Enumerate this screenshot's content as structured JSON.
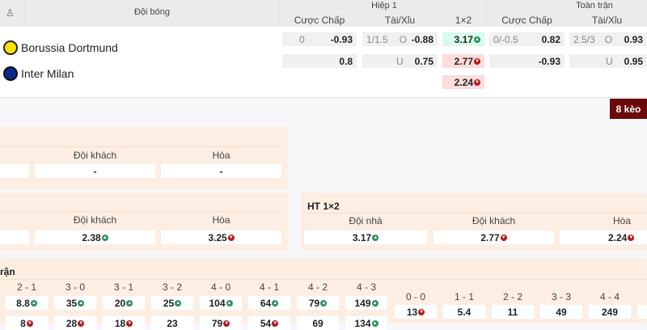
{
  "header": {
    "team_col": "Đội bóng",
    "half": "Hiệp 1",
    "full": "Toàn trận",
    "handicap": "Cược Chấp",
    "ou": "Tài/Xỉu",
    "x12": "1×2"
  },
  "teams": [
    {
      "name": "Borussia Dortmund",
      "color": "#fde100"
    },
    {
      "name": "Inter Milan",
      "color": "#0a2a8a"
    }
  ],
  "odds": {
    "h1_hdp": [
      {
        "line": "0",
        "val": "-0.93"
      },
      {
        "line": "",
        "val": "0.8"
      }
    ],
    "h1_ou": [
      {
        "line": "1/1.5",
        "side": "O",
        "val": "-0.88"
      },
      {
        "line": "",
        "side": "U",
        "val": "0.75"
      }
    ],
    "h1_1x2": [
      {
        "val": "3.17",
        "dir": "up"
      },
      {
        "val": "2.77",
        "dir": "down"
      },
      {
        "val": "2.24",
        "dir": "down"
      }
    ],
    "ft_hdp": [
      {
        "line": "0/-0.5",
        "val": "0.82"
      },
      {
        "line": "",
        "val": "-0.93"
      }
    ],
    "ft_ou": [
      {
        "line": "2.5/3",
        "side": "O",
        "val": "0.93"
      },
      {
        "line": "",
        "side": "U",
        "val": "0.95"
      }
    ]
  },
  "more_button": "8 kèo",
  "panel1": {
    "labels": [
      "Đội khách",
      "Hòa"
    ],
    "values": [
      "",
      "-",
      "-"
    ]
  },
  "panel2": {
    "labels": [
      "Đội khách",
      "Hòa"
    ],
    "values": [
      "",
      "2.38",
      "3.25"
    ]
  },
  "ht1x2": {
    "title": "HT 1×2",
    "labels": [
      "Đội nhà",
      "Đội khách",
      "Hòa"
    ],
    "values": [
      "3.17",
      "2.77",
      "2.24"
    ]
  },
  "scores": {
    "title": "rận",
    "left": [
      {
        "score": "2 - 1",
        "a": "8.8",
        "b": "8"
      },
      {
        "score": "3 - 0",
        "a": "35",
        "b": "28"
      },
      {
        "score": "3 - 1",
        "a": "20",
        "b": "18"
      },
      {
        "score": "3 - 2",
        "a": "25",
        "b": "23"
      },
      {
        "score": "4 - 0",
        "a": "104",
        "b": "79"
      },
      {
        "score": "4 - 1",
        "a": "64",
        "b": "54"
      },
      {
        "score": "4 - 2",
        "a": "79",
        "b": "69"
      },
      {
        "score": "4 - 3",
        "a": "149",
        "b": "134"
      }
    ],
    "draws": [
      {
        "score": "0 - 0",
        "a": "13"
      },
      {
        "score": "1 - 1",
        "a": "5.4"
      },
      {
        "score": "2 - 2",
        "a": "11"
      },
      {
        "score": "3 - 3",
        "a": "49"
      },
      {
        "score": "4 - 4",
        "a": "249"
      }
    ]
  }
}
